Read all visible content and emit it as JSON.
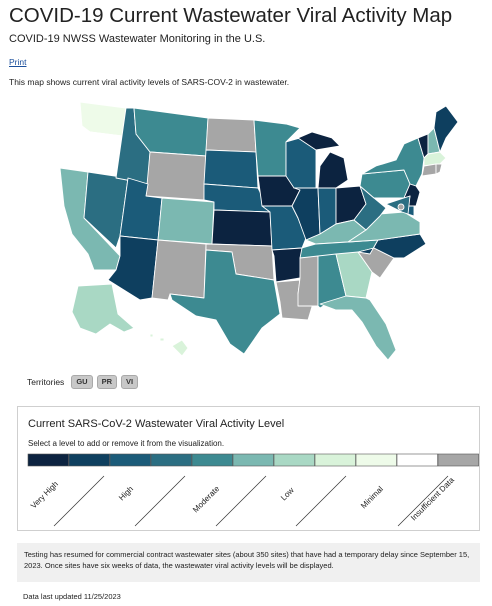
{
  "header": {
    "title": "COVID-19 Current Wastewater Viral Activity Map",
    "subtitle": "COVID-19 NWSS Wastewater Monitoring in the U.S.",
    "print_label": "Print",
    "description": "This map shows current viral activity levels of SARS-COV-2 in wastewater."
  },
  "colors": {
    "very_high": "#0c2340",
    "high_dark": "#0e3f5f",
    "high": "#1b5b79",
    "moderate_dark": "#2b6e82",
    "moderate": "#3d8a91",
    "moderate_light": "#7bb8b1",
    "low": "#a9d8c4",
    "low_light": "#d9f3da",
    "minimal": "#eefbe9",
    "minimal_white": "#ffffff",
    "insufficient": "#a6a6a6"
  },
  "map": {
    "states": [
      {
        "code": "WA",
        "level": "minimal"
      },
      {
        "code": "OR",
        "level": "minimal_white"
      },
      {
        "code": "CA",
        "level": "moderate_light"
      },
      {
        "code": "NV",
        "level": "moderate_dark"
      },
      {
        "code": "ID",
        "level": "moderate_dark"
      },
      {
        "code": "MT",
        "level": "moderate"
      },
      {
        "code": "WY",
        "level": "insufficient"
      },
      {
        "code": "UT",
        "level": "high"
      },
      {
        "code": "CO",
        "level": "moderate_light"
      },
      {
        "code": "AZ",
        "level": "high_dark"
      },
      {
        "code": "NM",
        "level": "insufficient"
      },
      {
        "code": "ND",
        "level": "insufficient"
      },
      {
        "code": "SD",
        "level": "high"
      },
      {
        "code": "NE",
        "level": "high"
      },
      {
        "code": "KS",
        "level": "very_high"
      },
      {
        "code": "OK",
        "level": "insufficient"
      },
      {
        "code": "TX",
        "level": "moderate"
      },
      {
        "code": "MN",
        "level": "moderate"
      },
      {
        "code": "IA",
        "level": "very_high"
      },
      {
        "code": "MO",
        "level": "high"
      },
      {
        "code": "AR",
        "level": "very_high"
      },
      {
        "code": "LA",
        "level": "insufficient"
      },
      {
        "code": "WI",
        "level": "high"
      },
      {
        "code": "IL",
        "level": "high_dark"
      },
      {
        "code": "IN",
        "level": "high"
      },
      {
        "code": "MI",
        "level": "very_high"
      },
      {
        "code": "OH",
        "level": "very_high"
      },
      {
        "code": "KY",
        "level": "moderate_light"
      },
      {
        "code": "TN",
        "level": "moderate"
      },
      {
        "code": "MS",
        "level": "insufficient"
      },
      {
        "code": "AL",
        "level": "moderate"
      },
      {
        "code": "GA",
        "level": "low"
      },
      {
        "code": "FL",
        "level": "moderate_light"
      },
      {
        "code": "SC",
        "level": "insufficient"
      },
      {
        "code": "NC",
        "level": "high_dark"
      },
      {
        "code": "VA",
        "level": "moderate_light"
      },
      {
        "code": "WV",
        "level": "moderate_dark"
      },
      {
        "code": "PA",
        "level": "moderate"
      },
      {
        "code": "NY",
        "level": "moderate"
      },
      {
        "code": "VT",
        "level": "very_high"
      },
      {
        "code": "NH",
        "level": "moderate_light"
      },
      {
        "code": "ME",
        "level": "high_dark"
      },
      {
        "code": "MA",
        "level": "low_light"
      },
      {
        "code": "CT",
        "level": "insufficient"
      },
      {
        "code": "RI",
        "level": "insufficient"
      },
      {
        "code": "NJ",
        "level": "very_high"
      },
      {
        "code": "DE",
        "level": "high"
      },
      {
        "code": "MD",
        "level": "moderate_dark"
      },
      {
        "code": "DC",
        "level": "insufficient"
      },
      {
        "code": "AK",
        "level": "low"
      },
      {
        "code": "HI",
        "level": "low_light"
      }
    ]
  },
  "territories": {
    "label": "Territories",
    "items": [
      "GU",
      "PR",
      "VI"
    ]
  },
  "legend": {
    "title": "Current SARS-CoV-2 Wastewater Viral Activity Level",
    "instruction": "Select a level to add or remove it from the visualization.",
    "swatches": [
      "very_high",
      "high_dark",
      "high",
      "moderate_dark",
      "moderate",
      "moderate_light",
      "low",
      "low_light",
      "minimal",
      "minimal_white",
      "insufficient"
    ],
    "labels": [
      "Very High",
      "High",
      "Moderate",
      "Low",
      "Minimal",
      "Insufficient Data"
    ]
  },
  "notice": {
    "text": "Testing has resumed for commercial contract wastewater sites (about 350 sites) that have had a temporary delay since September 15, 2023. Once sites have six weeks of data, the wastewater viral activity levels will be displayed."
  },
  "footer": {
    "updated": "Data last updated 11/25/2023"
  }
}
